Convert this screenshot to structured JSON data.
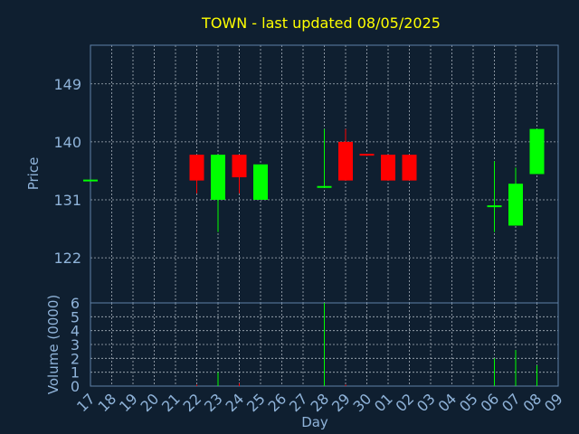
{
  "chart_data": {
    "type": "candlestick",
    "title": "TOWN - last updated 08/05/2025",
    "xlabel": "Day",
    "price_axis": {
      "label": "Price",
      "ylim": [
        115,
        155
      ],
      "ticks": [
        122,
        131,
        140,
        149
      ]
    },
    "volume_axis": {
      "label": "Volume (0000)",
      "ylim": [
        0,
        6
      ],
      "ticks": [
        0,
        1,
        2,
        3,
        4,
        5,
        6
      ]
    },
    "grid": true,
    "up_color": "#00ff00",
    "down_color": "#ff0000",
    "x_labels": [
      "17",
      "18",
      "19",
      "20",
      "21",
      "22",
      "23",
      "24",
      "25",
      "26",
      "27",
      "28",
      "29",
      "30",
      "01",
      "02",
      "03",
      "04",
      "05",
      "06",
      "07",
      "08",
      "09"
    ],
    "candles": [
      {
        "x": "17",
        "open": 134.0,
        "high": 134.0,
        "low": 134.0,
        "close": 134.0,
        "volume": 0.0
      },
      {
        "x": "22",
        "open": 138.0,
        "high": 138.0,
        "low": 132.0,
        "close": 134.0,
        "volume": 0.1
      },
      {
        "x": "23",
        "open": 131.0,
        "high": 138.0,
        "low": 126.0,
        "close": 138.0,
        "volume": 1.0
      },
      {
        "x": "24",
        "open": 138.0,
        "high": 138.0,
        "low": 132.0,
        "close": 134.5,
        "volume": 0.2
      },
      {
        "x": "25",
        "open": 131.0,
        "high": 136.5,
        "low": 131.0,
        "close": 136.5,
        "volume": 0.0
      },
      {
        "x": "28",
        "open": 133.0,
        "high": 142.0,
        "low": 133.0,
        "close": 133.0,
        "volume": 6.0
      },
      {
        "x": "29",
        "open": 140.0,
        "high": 142.0,
        "low": 134.0,
        "close": 134.0,
        "volume": 0.1
      },
      {
        "x": "30",
        "open": 138.0,
        "high": 138.0,
        "low": 137.8,
        "close": 137.8,
        "volume": 0.0
      },
      {
        "x": "01",
        "open": 138.0,
        "high": 138.0,
        "low": 134.0,
        "close": 134.0,
        "volume": 0.0
      },
      {
        "x": "02",
        "open": 138.0,
        "high": 138.0,
        "low": 134.0,
        "close": 134.0,
        "volume": 0.0
      },
      {
        "x": "06",
        "open": 130.0,
        "high": 137.0,
        "low": 126.0,
        "close": 130.0,
        "volume": 2.0
      },
      {
        "x": "07",
        "open": 127.0,
        "high": 136.0,
        "low": 127.0,
        "close": 133.5,
        "volume": 2.6
      },
      {
        "x": "08",
        "open": 135.0,
        "high": 142.0,
        "low": 135.0,
        "close": 142.0,
        "volume": 1.5
      }
    ]
  }
}
